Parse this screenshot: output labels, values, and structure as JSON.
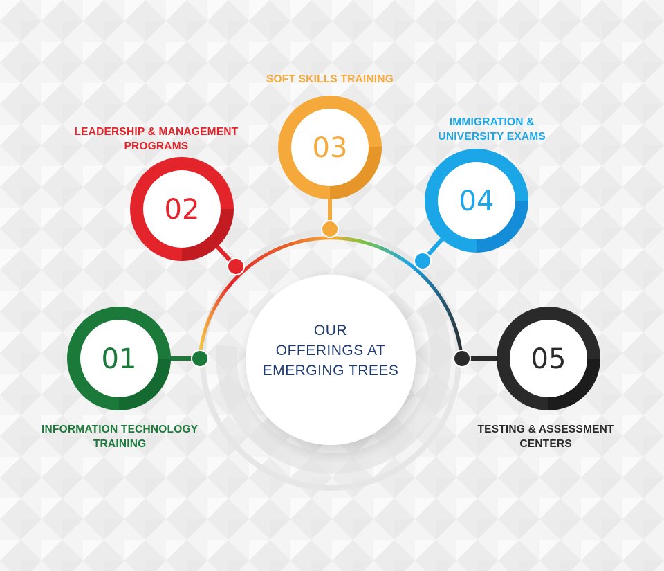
{
  "center": {
    "lines": [
      "OUR",
      "OFFERINGS AT",
      "EMERGING TREES"
    ],
    "color": "#1f3a6e"
  },
  "offerings": [
    {
      "number": "01",
      "title_lines": [
        "INFORMATION TECHNOLOGY",
        "TRAINING"
      ],
      "color": "#1b7a3a",
      "dark": "#0f5c28"
    },
    {
      "number": "02",
      "title_lines": [
        "LEADERSHIP & MANAGEMENT",
        "PROGRAMS"
      ],
      "color": "#e3242b",
      "dark": "#a8161c"
    },
    {
      "number": "03",
      "title_lines": [
        "SOFT SKILLS TRAINING"
      ],
      "color": "#f6a93b",
      "dark": "#d8861a"
    },
    {
      "number": "04",
      "title_lines": [
        "IMMIGRATION &",
        "UNIVERSITY EXAMS"
      ],
      "color": "#1ba6e8",
      "dark": "#1077c8"
    },
    {
      "number": "05",
      "title_lines": [
        "TESTING & ASSESSMENT",
        "CENTERS"
      ],
      "color": "#2a2a2a",
      "dark": "#111111"
    }
  ]
}
